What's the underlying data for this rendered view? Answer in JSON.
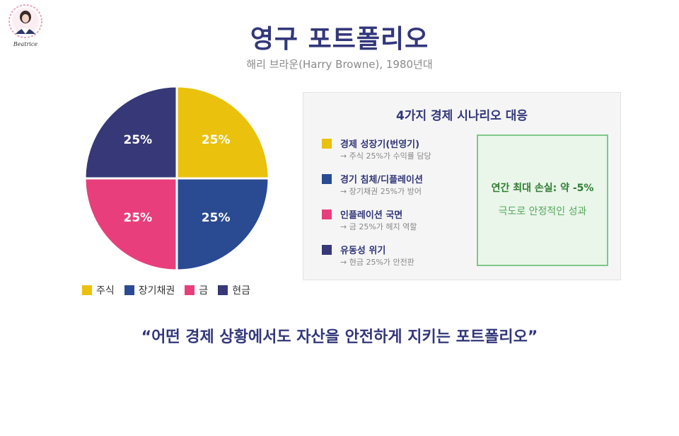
{
  "header": {
    "title": "영구 포트폴리오",
    "subtitle": "해리 브라운(Harry Browne), 1980년대"
  },
  "logo": {
    "text": "Beatrice"
  },
  "chart_data": {
    "type": "pie",
    "categories": [
      "주식",
      "장기채권",
      "금",
      "현금"
    ],
    "values": [
      25,
      25,
      25,
      25
    ],
    "labels": [
      "25%",
      "25%",
      "25%",
      "25%"
    ],
    "colors": [
      "#eac10c",
      "#2a4a92",
      "#e83f7c",
      "#363878"
    ],
    "legend_position": "bottom"
  },
  "scenarios": {
    "title": "4가지 경제 시나리오 대응",
    "items": [
      {
        "name": "경제 성장기(번영기)",
        "desc": "→ 주식 25%가 수익률 담당",
        "color": "#eac10c"
      },
      {
        "name": "경기 침체/디플레이션",
        "desc": "→ 장기채권 25%가 방어",
        "color": "#2a4a92"
      },
      {
        "name": "인플레이션 국면",
        "desc": "→ 금 25%가 헤지 역할",
        "color": "#e83f7c"
      },
      {
        "name": "유동성 위기",
        "desc": "→ 현금 25%가 안전판",
        "color": "#363878"
      }
    ],
    "loss": {
      "title": "연간 최대 손실: 약 -5%",
      "subtitle": "극도로 안정적인 성과"
    }
  },
  "quote": "“어떤 경제 상황에서도 자산을 안전하게 지키는 포트폴리오”"
}
